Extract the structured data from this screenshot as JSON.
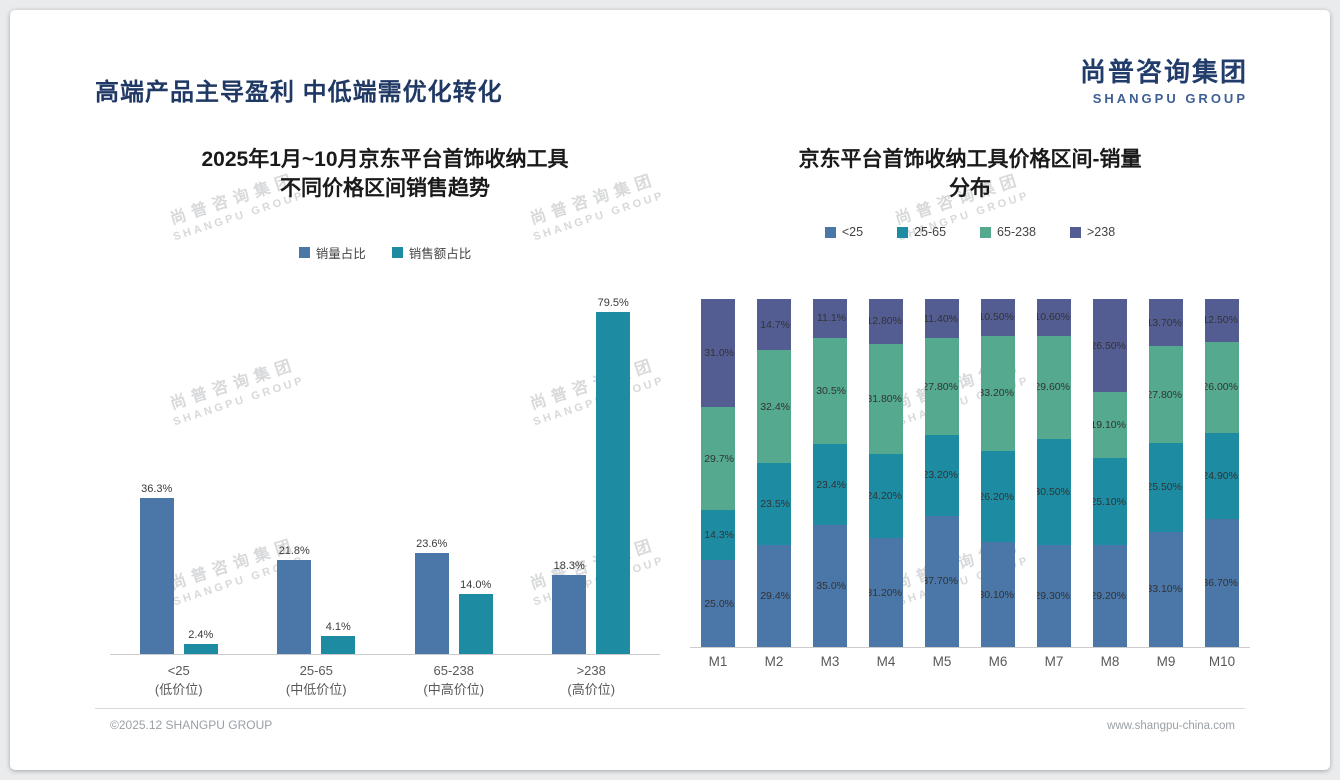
{
  "page": {
    "title": "高端产品主导盈利 中低端需优化转化",
    "logo": {
      "cn": "尚普咨询集团",
      "en": "SHANGPU GROUP"
    },
    "watermark": {
      "line1": "尚普咨询集团",
      "line2": "SHANGPU GROUP"
    },
    "footer": {
      "left": "©2025.12 SHANGPU GROUP",
      "right": "www.shangpu-china.com"
    }
  },
  "colors": {
    "series_blue": "#4A76A8",
    "series_teal": "#1D8CA3",
    "series_green": "#55A98E",
    "series_purple": "#545D92",
    "title_navy": "#1F3864",
    "axis_text": "#595959",
    "watermark": "#D7D9DB"
  },
  "chart_data": [
    {
      "type": "bar",
      "variant": "grouped",
      "title": "2025年1月~10月京东平台首饰收纳工具 不同价格区间销售趋势",
      "title_lines": [
        "2025年1月~10月京东平台首饰收纳工具",
        "不同价格区间销售趋势"
      ],
      "legend_position": "top",
      "grid": false,
      "xlabel": "",
      "ylabel": "",
      "ylim": [
        0,
        85
      ],
      "categories": [
        {
          "label": "<25",
          "sub": "(低价位)"
        },
        {
          "label": "25-65",
          "sub": "(中低价位)"
        },
        {
          "label": "65-238",
          "sub": "(中高价位)"
        },
        {
          "label": ">238",
          "sub": "(高价位)"
        }
      ],
      "series": [
        {
          "name": "销量占比",
          "color": "#4A76A8",
          "values": [
            36.3,
            21.8,
            23.6,
            18.3
          ],
          "labels": [
            "36.3%",
            "21.8%",
            "23.6%",
            "18.3%"
          ]
        },
        {
          "name": "销售额占比",
          "color": "#1D8CA3",
          "values": [
            2.4,
            4.1,
            14.0,
            79.5
          ],
          "labels": [
            "2.4%",
            "4.1%",
            "14.0%",
            "79.5%"
          ]
        }
      ]
    },
    {
      "type": "bar",
      "variant": "stacked-100",
      "title": "京东平台首饰收纳工具价格区间-销量 分布",
      "title_lines": [
        "京东平台首饰收纳工具价格区间-销量",
        "分布"
      ],
      "legend_position": "top",
      "grid": false,
      "xlabel": "",
      "ylabel": "",
      "ylim": [
        0,
        100
      ],
      "categories": [
        "M1",
        "M2",
        "M3",
        "M4",
        "M5",
        "M6",
        "M7",
        "M8",
        "M9",
        "M10"
      ],
      "series": [
        {
          "name": "<25",
          "color": "#4A76A8",
          "values": [
            25.0,
            29.4,
            35.0,
            31.2,
            37.7,
            30.1,
            29.3,
            29.2,
            33.1,
            36.7
          ],
          "labels": [
            "25.0%",
            "29.4%",
            "35.0%",
            "31.20%",
            "37.70%",
            "30.10%",
            "29.30%",
            "29.20%",
            "33.10%",
            "36.70%"
          ]
        },
        {
          "name": "25-65",
          "color": "#1D8CA3",
          "values": [
            14.3,
            23.5,
            23.4,
            24.2,
            23.2,
            26.2,
            30.5,
            25.1,
            25.5,
            24.9
          ],
          "labels": [
            "14.3%",
            "23.5%",
            "23.4%",
            "24.20%",
            "23.20%",
            "26.20%",
            "30.50%",
            "25.10%",
            "25.50%",
            "24.90%"
          ]
        },
        {
          "name": "65-238",
          "color": "#55A98E",
          "values": [
            29.7,
            32.4,
            30.5,
            31.8,
            27.8,
            33.2,
            29.6,
            19.1,
            27.8,
            26.0
          ],
          "labels": [
            "29.7%",
            "32.4%",
            "30.5%",
            "31.80%",
            "27.80%",
            "33.20%",
            "29.60%",
            "19.10%",
            "27.80%",
            "26.00%"
          ]
        },
        {
          "name": ">238",
          "color": "#545D92",
          "values": [
            31.0,
            14.7,
            11.1,
            12.8,
            11.4,
            10.5,
            10.6,
            26.5,
            13.7,
            12.5
          ],
          "labels": [
            "31.0%",
            "14.7%",
            "11.1%",
            "12.80%",
            "11.40%",
            "10.50%",
            "10.60%",
            "26.50%",
            "13.70%",
            "12.50%"
          ]
        }
      ]
    }
  ]
}
